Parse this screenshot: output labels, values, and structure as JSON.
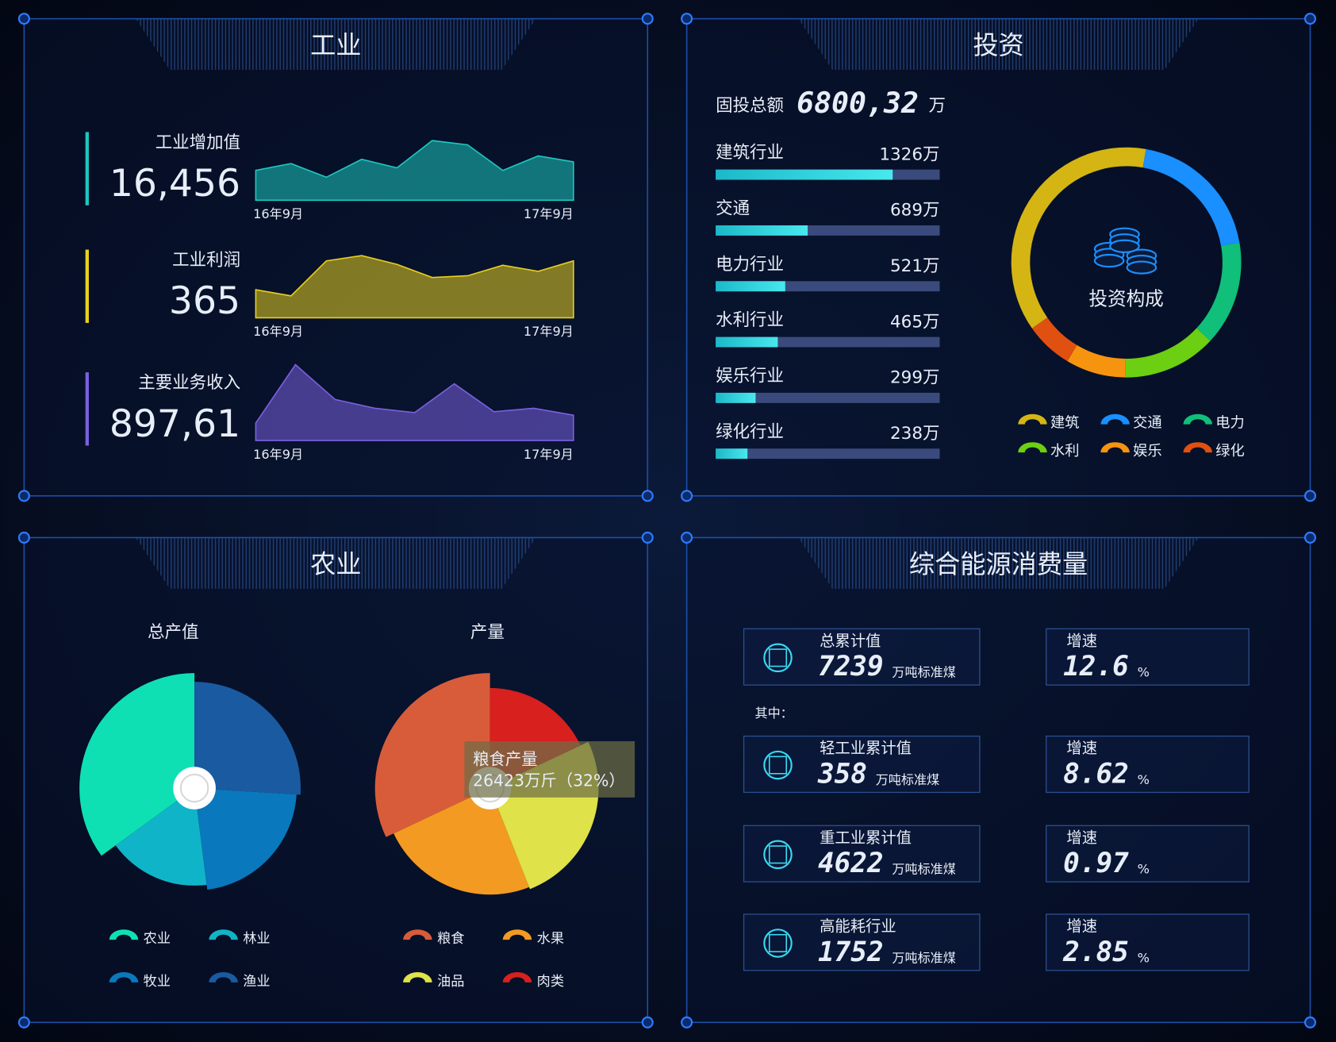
{
  "industry": {
    "title": "工业",
    "metrics": [
      {
        "label": "工业增加值",
        "value": "16,456",
        "trend": [
          35,
          43,
          27,
          48,
          38,
          70,
          65,
          35,
          52,
          45
        ],
        "start": "16年9月",
        "end": "17年9月",
        "color": "#1ec8c0"
      },
      {
        "label": "工业利润",
        "value": "365",
        "trend": [
          32,
          25,
          65,
          71,
          61,
          46,
          48,
          60,
          53,
          65
        ],
        "start": "16年9月",
        "end": "17年9月",
        "color": "#e8d020"
      },
      {
        "label": "主要业务收入",
        "value": "897,61",
        "trend": [
          20,
          87,
          47,
          37,
          32,
          65,
          33,
          37,
          29
        ],
        "start": "16年9月",
        "end": "17年9月",
        "color": "#7a60e0"
      }
    ]
  },
  "investment": {
    "title": "投资",
    "total_label": "固投总额",
    "total": "6800,32",
    "total_unit": "万",
    "bars": {
      "categories": [
        "建筑行业",
        "交通",
        "电力行业",
        "水利行业",
        "娱乐行业",
        "绿化行业"
      ],
      "values": [
        1326,
        689,
        521,
        465,
        299,
        238
      ],
      "value_labels": [
        "1326万",
        "689万",
        "521万",
        "465万",
        "299万",
        "238万"
      ]
    },
    "donut": {
      "title": "投资构成",
      "legend": [
        {
          "name": "建筑",
          "color": "#d4b514"
        },
        {
          "name": "交通",
          "color": "#1a8fff"
        },
        {
          "name": "电力",
          "color": "#0fbf7a"
        },
        {
          "name": "水利",
          "color": "#6ccf12"
        },
        {
          "name": "娱乐",
          "color": "#f7940f"
        },
        {
          "name": "绿化",
          "color": "#e05010"
        }
      ]
    }
  },
  "agriculture": {
    "title": "农业",
    "pies": [
      {
        "title": "总产值",
        "series": [
          {
            "name": "农业",
            "color": "#0fe0b4",
            "value": 35
          },
          {
            "name": "林业",
            "color": "#10b4c8",
            "value": 17
          },
          {
            "name": "牧业",
            "color": "#0a78bc",
            "value": 22
          },
          {
            "name": "渔业",
            "color": "#1a5aa0",
            "value": 26
          }
        ]
      },
      {
        "title": "产量",
        "series": [
          {
            "name": "粮食",
            "color": "#d85c3a",
            "value": 32
          },
          {
            "name": "水果",
            "color": "#f39a22",
            "value": 24
          },
          {
            "name": "油品",
            "color": "#dfe248",
            "value": 26
          },
          {
            "name": "肉类",
            "color": "#d8201e",
            "value": 18
          }
        ]
      }
    ],
    "tooltip": {
      "title": "粮食产量",
      "text": "26423万斤（32%）"
    }
  },
  "energy": {
    "title": "综合能源消费量",
    "note": "其中：",
    "rows": [
      {
        "label": "总累计值",
        "value": "7239",
        "unit": "万吨标准煤",
        "speed_label": "增速",
        "speed": "12.6",
        "speed_unit": "%"
      },
      {
        "label": "轻工业累计值",
        "value": "358",
        "unit": "万吨标准煤",
        "speed_label": "增速",
        "speed": "8.62",
        "speed_unit": "%"
      },
      {
        "label": "重工业累计值",
        "value": "4622",
        "unit": "万吨标准煤",
        "speed_label": "增速",
        "speed": "0.97",
        "speed_unit": "%"
      },
      {
        "label": "高能耗行业",
        "value": "1752",
        "unit": "万吨标准煤",
        "speed_label": "增速",
        "speed": "2.85",
        "speed_unit": "%"
      }
    ]
  }
}
